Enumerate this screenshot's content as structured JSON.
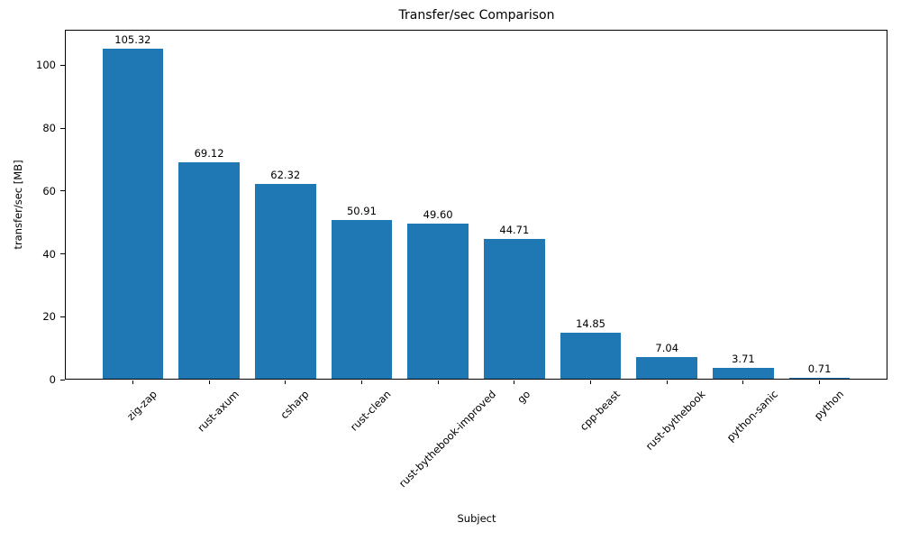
{
  "chart_data": {
    "type": "bar",
    "title": "Transfer/sec Comparison",
    "xlabel": "Subject",
    "ylabel": "transfer/sec [MB]",
    "categories": [
      "zig-zap",
      "rust-axum",
      "csharp",
      "rust-clean",
      "rust-bythebook-improved",
      "go",
      "cpp-beast",
      "rust-bythebook",
      "python-sanic",
      "python"
    ],
    "values": [
      105.32,
      69.12,
      62.32,
      50.91,
      49.6,
      44.71,
      14.85,
      7.04,
      3.71,
      0.71
    ],
    "value_labels": [
      "105.32",
      "69.12",
      "62.32",
      "50.91",
      "49.60",
      "44.71",
      "14.85",
      "7.04",
      "3.71",
      "0.71"
    ],
    "yticks": [
      0,
      20,
      40,
      60,
      80,
      100
    ],
    "ylim": [
      0,
      111.3
    ],
    "x_tick_rotation_deg": 45,
    "grid": false,
    "legend": "none",
    "bar_color": "#1f77b4",
    "text_color": "#000000",
    "spine_color": "#000000"
  }
}
